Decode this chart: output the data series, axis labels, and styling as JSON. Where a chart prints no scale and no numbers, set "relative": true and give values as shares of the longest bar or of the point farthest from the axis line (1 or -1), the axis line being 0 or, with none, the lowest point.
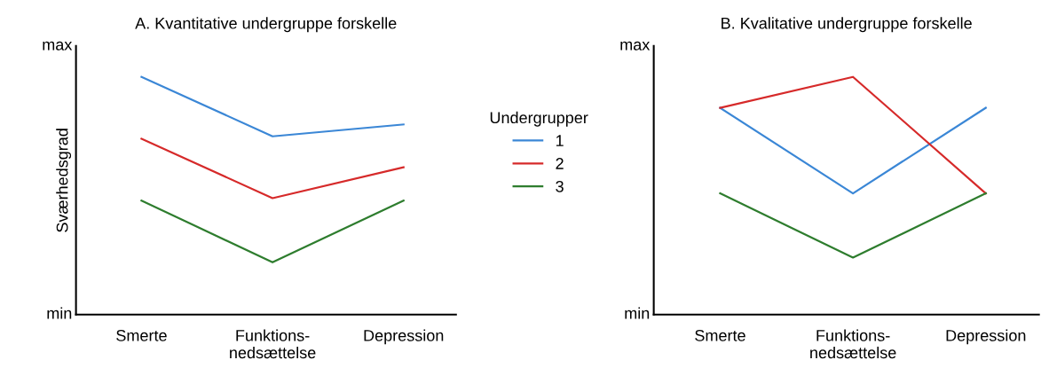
{
  "chart_data": [
    {
      "type": "line",
      "title": "A. Kvantitative undergruppe forskelle",
      "ylabel": "Sværhedsgrad",
      "categories": [
        "Smerte",
        "Funktions-\nnedsættelse",
        "Depression"
      ],
      "relative": true,
      "annotations": [
        "min",
        "max"
      ],
      "legend": "right",
      "legend_title": "Undergrupper",
      "marker": "none",
      "line_style": "solid",
      "series": [
        {
          "name": "1",
          "color": "#3b87d6",
          "values": [
            1,
            0.75,
            0.8
          ]
        },
        {
          "name": "2",
          "color": "#d62a2a",
          "values": [
            0.74,
            0.49,
            0.62
          ]
        },
        {
          "name": "3",
          "color": "#2e7d2e",
          "values": [
            0.48,
            0.22,
            0.48
          ]
        }
      ]
    },
    {
      "type": "line",
      "title": "B. Kvalitative undergruppe forskelle",
      "categories": [
        "Smerte",
        "Funktions-\nnedsættelse",
        "Depression"
      ],
      "relative": true,
      "annotations": [
        "min",
        "max"
      ],
      "marker": "none",
      "line_style": "solid",
      "series": [
        {
          "color": "#3b87d6",
          "values": [
            0.87,
            0.51,
            0.87
          ]
        },
        {
          "color": "#d62a2a",
          "values": [
            0.87,
            1,
            0.51
          ]
        },
        {
          "color": "#2e7d2e",
          "values": [
            0.51,
            0.24,
            0.51
          ]
        }
      ]
    }
  ]
}
